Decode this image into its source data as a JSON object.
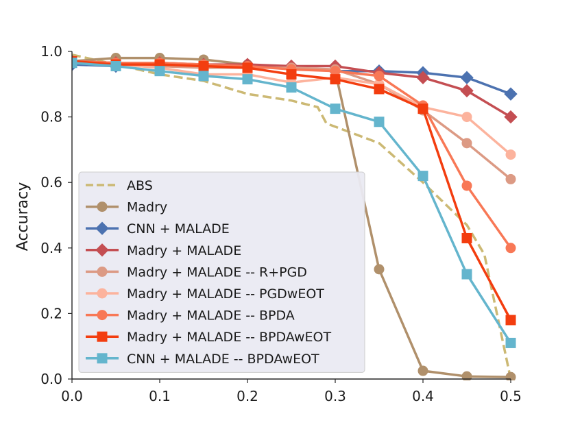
{
  "chart_data": {
    "type": "line",
    "title": "",
    "xlabel": "",
    "ylabel": "Accuracy",
    "xlim": [
      0.0,
      0.5
    ],
    "ylim": [
      0.0,
      1.0
    ],
    "grid": false,
    "legend_position": "lower-left",
    "x_ticks": [
      0.0,
      0.1,
      0.2,
      0.3,
      0.4,
      0.5
    ],
    "x_tick_labels": [
      "0.0",
      "0.1",
      "0.2",
      "0.3",
      "0.4",
      "0.5"
    ],
    "y_ticks": [
      0.0,
      0.2,
      0.4,
      0.6,
      0.8,
      1.0
    ],
    "y_tick_labels": [
      "0.0",
      "0.2",
      "0.4",
      "0.6",
      "0.8",
      "1.0"
    ],
    "series": [
      {
        "name": "ABS",
        "color": "#ccb974",
        "marker": "none",
        "dashed": true,
        "x": [
          0.0,
          0.05,
          0.1,
          0.15,
          0.2,
          0.25,
          0.28,
          0.29,
          0.3,
          0.35,
          0.4,
          0.45,
          0.47,
          0.5
        ],
        "y": [
          0.99,
          0.96,
          0.93,
          0.91,
          0.87,
          0.85,
          0.83,
          0.78,
          0.77,
          0.72,
          0.6,
          0.47,
          0.38,
          0.0
        ]
      },
      {
        "name": "Madry",
        "color": "#b0906b",
        "marker": "circle",
        "dashed": false,
        "x": [
          0.0,
          0.05,
          0.1,
          0.15,
          0.2,
          0.25,
          0.3,
          0.35,
          0.4,
          0.45,
          0.5
        ],
        "y": [
          0.97,
          0.98,
          0.98,
          0.975,
          0.96,
          0.95,
          0.94,
          0.335,
          0.025,
          0.008,
          0.006
        ]
      },
      {
        "name": "CNN + MALADE",
        "color": "#4c72b0",
        "marker": "diamond",
        "dashed": false,
        "x": [
          0.0,
          0.05,
          0.1,
          0.15,
          0.2,
          0.25,
          0.3,
          0.35,
          0.4,
          0.45,
          0.5
        ],
        "y": [
          0.96,
          0.955,
          0.96,
          0.96,
          0.955,
          0.95,
          0.94,
          0.94,
          0.935,
          0.92,
          0.87
        ]
      },
      {
        "name": "Madry + MALADE",
        "color": "#c44e52",
        "marker": "diamond",
        "dashed": false,
        "x": [
          0.0,
          0.05,
          0.1,
          0.15,
          0.2,
          0.25,
          0.3,
          0.35,
          0.4,
          0.45,
          0.5
        ],
        "y": [
          0.97,
          0.965,
          0.965,
          0.96,
          0.96,
          0.955,
          0.955,
          0.935,
          0.92,
          0.88,
          0.8
        ]
      },
      {
        "name": "Madry + MALADE -- R+PGD",
        "color": "#dc9a84",
        "marker": "circle",
        "dashed": false,
        "x": [
          0.0,
          0.05,
          0.1,
          0.15,
          0.2,
          0.25,
          0.3,
          0.35,
          0.4,
          0.45,
          0.5
        ],
        "y": [
          0.97,
          0.96,
          0.955,
          0.95,
          0.95,
          0.95,
          0.945,
          0.9,
          0.82,
          0.72,
          0.61
        ]
      },
      {
        "name": "Madry + MALADE -- PGDwEOT",
        "color": "#fcb39d",
        "marker": "circle",
        "dashed": false,
        "x": [
          0.0,
          0.05,
          0.1,
          0.15,
          0.2,
          0.25,
          0.3,
          0.35,
          0.4,
          0.45,
          0.5
        ],
        "y": [
          0.97,
          0.96,
          0.95,
          0.93,
          0.93,
          0.905,
          0.92,
          0.9,
          0.83,
          0.8,
          0.685
        ]
      },
      {
        "name": "Madry + MALADE -- BPDA",
        "color": "#f87856",
        "marker": "circle",
        "dashed": false,
        "x": [
          0.0,
          0.05,
          0.1,
          0.15,
          0.2,
          0.25,
          0.3,
          0.35,
          0.4,
          0.45,
          0.5
        ],
        "y": [
          0.97,
          0.965,
          0.965,
          0.96,
          0.955,
          0.945,
          0.94,
          0.925,
          0.835,
          0.59,
          0.4
        ]
      },
      {
        "name": "Madry + MALADE -- BPDAwEOT",
        "color": "#f33d0f",
        "marker": "square",
        "dashed": false,
        "x": [
          0.0,
          0.05,
          0.1,
          0.15,
          0.2,
          0.25,
          0.3,
          0.35,
          0.4,
          0.45,
          0.5
        ],
        "y": [
          0.97,
          0.96,
          0.96,
          0.955,
          0.95,
          0.93,
          0.915,
          0.885,
          0.825,
          0.43,
          0.18
        ]
      },
      {
        "name": "CNN + MALADE -- BPDAwEOT",
        "color": "#64b5cd",
        "marker": "square",
        "dashed": false,
        "x": [
          0.0,
          0.05,
          0.1,
          0.15,
          0.2,
          0.25,
          0.3,
          0.35,
          0.4,
          0.45,
          0.5
        ],
        "y": [
          0.965,
          0.955,
          0.94,
          0.925,
          0.915,
          0.89,
          0.825,
          0.785,
          0.62,
          0.32,
          0.11
        ]
      }
    ]
  }
}
